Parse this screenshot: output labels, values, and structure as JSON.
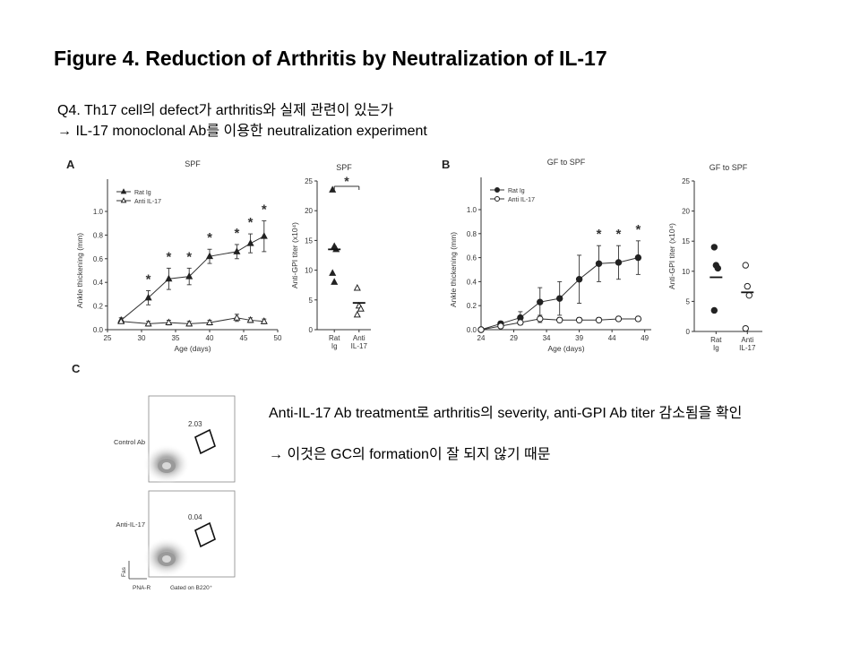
{
  "title": "Figure 4. Reduction of Arthritis by Neutralization of IL-17",
  "question": {
    "line1": "Q4. Th17 cell의 defect가 arthritis와 실제 관련이 있는가",
    "line2": "→ IL-17 monoclonal Ab를 이용한 neutralization experiment"
  },
  "summary": {
    "line1": "Anti-IL-17 Ab treatment로 arthritis의 severity, anti-GPI Ab titer 감소됨을 확인",
    "line2": "→ 이것은 GC의 formation이 잘 되지 않기 때문"
  },
  "panels": {
    "A": "A",
    "B": "B",
    "C": "C"
  },
  "chart_data": [
    {
      "type": "line",
      "panel": "A",
      "title": "SPF",
      "xlabel": "Age (days)",
      "ylabel": "Ankle thickening (mm)",
      "xlim": [
        25,
        50
      ],
      "ylim": [
        0,
        1.0
      ],
      "xticks": [
        "25",
        "30",
        "35",
        "40",
        "45",
        "50"
      ],
      "yticks": [
        "0.0",
        "0.2",
        "0.4",
        "0.6",
        "0.8",
        "1.0"
      ],
      "legend": [
        "Rat Ig",
        "Anti IL-17"
      ],
      "legend_position": "top-left",
      "x": [
        27,
        31,
        34,
        37,
        40,
        44,
        46,
        48
      ],
      "series": [
        {
          "name": "Rat Ig",
          "marker": "filled-triangle",
          "values": [
            0.08,
            0.27,
            0.43,
            0.45,
            0.62,
            0.66,
            0.73,
            0.79
          ],
          "errors": [
            0.02,
            0.06,
            0.09,
            0.07,
            0.06,
            0.06,
            0.08,
            0.13
          ]
        },
        {
          "name": "Anti IL-17",
          "marker": "open-triangle",
          "values": [
            0.07,
            0.05,
            0.06,
            0.05,
            0.06,
            0.1,
            0.08,
            0.07
          ],
          "errors": [
            0.01,
            0.02,
            0.02,
            0.02,
            0.02,
            0.03,
            0.02,
            0.02
          ]
        }
      ],
      "significance": [
        31,
        34,
        37,
        40,
        44,
        46,
        48
      ],
      "significance_label": "*"
    },
    {
      "type": "scatter",
      "panel": "A",
      "title": "SPF",
      "ylabel": "Anti-GPI titer (x10⁴)",
      "ylim": [
        0,
        25
      ],
      "yticks": [
        "0",
        "5",
        "10",
        "15",
        "20",
        "25"
      ],
      "categories": [
        "Rat Ig",
        "Anti IL-17"
      ],
      "category_lines": [
        [
          "Rat",
          "Ig"
        ],
        [
          "Anti",
          "IL-17"
        ]
      ],
      "series": [
        {
          "name": "Rat Ig",
          "marker": "filled-triangle",
          "values": [
            23.5,
            14,
            13.5,
            9.5,
            8
          ],
          "mean": 13.5
        },
        {
          "name": "Anti IL-17",
          "marker": "open-triangle",
          "values": [
            7,
            4,
            3.5,
            2.5
          ],
          "mean": 4.5
        }
      ],
      "significance_label": "*"
    },
    {
      "type": "line",
      "panel": "B",
      "title": "GF to SPF",
      "xlabel": "Age (days)",
      "ylabel": "Ankle thickening (mm)",
      "xlim": [
        24,
        50
      ],
      "ylim": [
        0,
        1.0
      ],
      "xticks": [
        "24",
        "29",
        "34",
        "39",
        "44",
        "49"
      ],
      "yticks": [
        "0.0",
        "0.2",
        "0.4",
        "0.6",
        "0.8",
        "1.0"
      ],
      "legend": [
        "Rat Ig",
        "Anti IL-17"
      ],
      "legend_position": "top-left",
      "x": [
        24,
        27,
        30,
        33,
        36,
        39,
        42,
        45,
        48
      ],
      "series": [
        {
          "name": "Rat Ig",
          "marker": "filled-circle",
          "values": [
            0.0,
            0.05,
            0.1,
            0.23,
            0.26,
            0.42,
            0.55,
            0.56,
            0.6
          ],
          "errors": [
            0.0,
            0.02,
            0.05,
            0.12,
            0.14,
            0.2,
            0.15,
            0.14,
            0.14
          ]
        },
        {
          "name": "Anti IL-17",
          "marker": "open-circle",
          "values": [
            0.0,
            0.03,
            0.06,
            0.09,
            0.08,
            0.08,
            0.08,
            0.09,
            0.09
          ],
          "errors": [
            0.0,
            0.01,
            0.02,
            0.03,
            0.02,
            0.02,
            0.02,
            0.02,
            0.02
          ]
        }
      ],
      "significance": [
        42,
        45,
        48
      ],
      "significance_label": "*"
    },
    {
      "type": "scatter",
      "panel": "B",
      "title": "GF to SPF",
      "ylabel": "Anti-GPI titer (x10⁴)",
      "ylim": [
        0,
        25
      ],
      "yticks": [
        "0",
        "5",
        "10",
        "15",
        "20",
        "25"
      ],
      "categories": [
        "Rat Ig",
        "Anti IL-17"
      ],
      "category_lines": [
        [
          "Rat",
          "Ig"
        ],
        [
          "Anti",
          "IL-17"
        ]
      ],
      "series": [
        {
          "name": "Rat Ig",
          "marker": "filled-circle",
          "values": [
            14,
            11,
            10.5,
            3.5
          ],
          "mean": 9
        },
        {
          "name": "Anti IL-17",
          "marker": "open-circle",
          "values": [
            11,
            7.5,
            6,
            0.5
          ],
          "mean": 6.5
        }
      ]
    }
  ],
  "flow": {
    "rows": [
      "Control Ab",
      "Anti-IL-17"
    ],
    "gate_percent": [
      "2.03",
      "0.04"
    ],
    "y_axis": "Fas",
    "x_axis": "PNA-R",
    "gating_note": "Gated on B220⁺"
  }
}
